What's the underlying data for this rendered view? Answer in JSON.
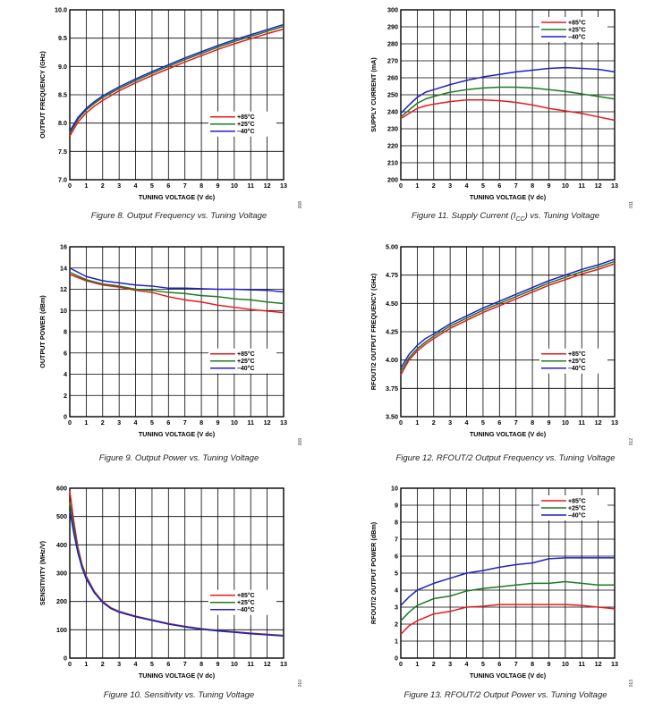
{
  "colors": {
    "hot": "#e8191d",
    "room": "#1c7a22",
    "cold": "#1f1fc8",
    "grid": "#000000"
  },
  "chart_data": [
    {
      "type": "line",
      "id": "fig8",
      "caption": "Figure 8. Output Frequency vs. Tuning Voltage",
      "code": "13382-008",
      "xlabel": "TUNING VOLTAGE (V dc)",
      "ylabel": "OUTPUT FREQUENCY (GHz)",
      "xlim": [
        0,
        13
      ],
      "ylim": [
        7.0,
        10.0
      ],
      "xticks": [
        "0",
        "1",
        "2",
        "3",
        "4",
        "5",
        "6",
        "7",
        "8",
        "9",
        "10",
        "11",
        "12",
        "13"
      ],
      "yticks": [
        "7.0",
        "7.5",
        "8.0",
        "8.5",
        "9.0",
        "9.5",
        "10.0"
      ],
      "legend": "middle-right",
      "x": [
        0,
        0.5,
        1,
        1.5,
        2,
        3,
        4,
        5,
        6,
        7,
        8,
        9,
        10,
        11,
        12,
        13
      ],
      "series": [
        {
          "name": "+85°C",
          "color": "hot",
          "values": [
            7.77,
            8.02,
            8.18,
            8.3,
            8.4,
            8.57,
            8.71,
            8.84,
            8.96,
            9.08,
            9.19,
            9.3,
            9.4,
            9.49,
            9.58,
            9.66
          ]
        },
        {
          "name": "+25°C",
          "color": "room",
          "values": [
            7.82,
            8.07,
            8.23,
            8.35,
            8.45,
            8.61,
            8.75,
            8.88,
            9.0,
            9.12,
            9.23,
            9.34,
            9.44,
            9.53,
            9.62,
            9.71
          ]
        },
        {
          "name": "–40°C",
          "color": "cold",
          "values": [
            7.86,
            8.1,
            8.26,
            8.38,
            8.48,
            8.64,
            8.78,
            8.91,
            9.03,
            9.15,
            9.26,
            9.37,
            9.47,
            9.56,
            9.65,
            9.74
          ]
        }
      ]
    },
    {
      "type": "line",
      "id": "fig11",
      "caption": "Figure 11. Supply Current (I",
      "caption_sub": "CC",
      "caption_end": ") vs. Tuning Voltage",
      "code": "13382-011",
      "xlabel": "TUNING VOLTAGE (V dc)",
      "ylabel": "SUPPLY CURRENT (mA)",
      "xlim": [
        0,
        13
      ],
      "ylim": [
        200,
        300
      ],
      "xticks": [
        "0",
        "1",
        "2",
        "3",
        "4",
        "5",
        "6",
        "7",
        "8",
        "9",
        "10",
        "11",
        "12",
        "13"
      ],
      "yticks": [
        "200",
        "210",
        "220",
        "230",
        "240",
        "250",
        "260",
        "270",
        "280",
        "290",
        "300"
      ],
      "legend": "top-right",
      "x": [
        0,
        0.5,
        1,
        1.5,
        2,
        3,
        4,
        5,
        6,
        7,
        8,
        9,
        10,
        11,
        12,
        13
      ],
      "series": [
        {
          "name": "+85°C",
          "color": "hot",
          "values": [
            236,
            239,
            242,
            243.5,
            244.5,
            246,
            247,
            247,
            246.5,
            245.5,
            244,
            242,
            240.5,
            239,
            237,
            235
          ]
        },
        {
          "name": "+25°C",
          "color": "room",
          "values": [
            237,
            241,
            245,
            247.5,
            249,
            251.5,
            253,
            254,
            254.5,
            254.5,
            254,
            253,
            252,
            250.5,
            249,
            247.5
          ]
        },
        {
          "name": "–40°C",
          "color": "cold",
          "values": [
            239,
            244,
            248.5,
            251.5,
            253,
            256,
            258.5,
            260.5,
            262,
            263.5,
            264.5,
            265.5,
            266,
            265.5,
            265,
            263.5
          ]
        }
      ]
    },
    {
      "type": "line",
      "id": "fig9",
      "caption": "Figure 9. Output Power vs. Tuning Voltage",
      "code": "13382-009",
      "xlabel": "TUNING VOLTAGE (V dc)",
      "ylabel": "OUTPUT POWER (dBm)",
      "xlim": [
        0,
        13
      ],
      "ylim": [
        0,
        16
      ],
      "xticks": [
        "0",
        "1",
        "2",
        "3",
        "4",
        "5",
        "6",
        "7",
        "8",
        "9",
        "10",
        "11",
        "12",
        "13"
      ],
      "yticks": [
        "0",
        "2",
        "4",
        "6",
        "8",
        "10",
        "12",
        "14",
        "16"
      ],
      "legend": "lower-right",
      "x": [
        0,
        1,
        2,
        3,
        4,
        5,
        6,
        7,
        8,
        9,
        10,
        11,
        12,
        13
      ],
      "series": [
        {
          "name": "+85°C",
          "color": "hot",
          "values": [
            13.4,
            12.8,
            12.4,
            12.2,
            11.9,
            11.7,
            11.3,
            11.0,
            10.8,
            10.5,
            10.3,
            10.1,
            9.95,
            9.8
          ]
        },
        {
          "name": "+25°C",
          "color": "room",
          "values": [
            13.6,
            12.9,
            12.5,
            12.3,
            12.0,
            11.9,
            11.7,
            11.6,
            11.4,
            11.3,
            11.1,
            11.0,
            10.8,
            10.65
          ]
        },
        {
          "name": "–40°C",
          "color": "cold",
          "values": [
            14.0,
            13.2,
            12.8,
            12.6,
            12.4,
            12.3,
            12.1,
            12.1,
            12.05,
            12.0,
            12.0,
            11.95,
            11.9,
            11.75
          ]
        }
      ]
    },
    {
      "type": "line",
      "id": "fig12",
      "caption": "Figure 12. RFOUT/2 Output Frequency vs. Tuning Voltage",
      "code": "13382-012",
      "xlabel": "TUNING VOLTAGE (V dc)",
      "ylabel": "RFOUT/2 OUTPUT FREQUENCY (GHz)",
      "xlim": [
        0,
        13
      ],
      "ylim": [
        3.5,
        5.0
      ],
      "xticks": [
        "0",
        "1",
        "2",
        "3",
        "4",
        "5",
        "6",
        "7",
        "8",
        "9",
        "10",
        "11",
        "12",
        "13"
      ],
      "yticks": [
        "3.50",
        "3.75",
        "4.00",
        "4.25",
        "4.50",
        "4.75",
        "5.00"
      ],
      "legend": "lower-right",
      "x": [
        0,
        0.5,
        1,
        1.5,
        2,
        3,
        4,
        5,
        6,
        7,
        8,
        9,
        10,
        11,
        12,
        13
      ],
      "series": [
        {
          "name": "+85°C",
          "color": "hot",
          "values": [
            3.87,
            4.0,
            4.08,
            4.14,
            4.19,
            4.28,
            4.35,
            4.42,
            4.48,
            4.54,
            4.6,
            4.66,
            4.71,
            4.76,
            4.8,
            4.85
          ]
        },
        {
          "name": "+25°C",
          "color": "room",
          "values": [
            3.9,
            4.02,
            4.1,
            4.16,
            4.21,
            4.3,
            4.37,
            4.44,
            4.5,
            4.56,
            4.62,
            4.68,
            4.73,
            4.78,
            4.82,
            4.87
          ]
        },
        {
          "name": "–40°C",
          "color": "cold",
          "values": [
            3.93,
            4.05,
            4.13,
            4.19,
            4.23,
            4.32,
            4.39,
            4.46,
            4.52,
            4.58,
            4.64,
            4.7,
            4.75,
            4.8,
            4.84,
            4.89
          ]
        }
      ]
    },
    {
      "type": "line",
      "id": "fig10",
      "caption": "Figure 10. Sensitivity vs. Tuning Voltage",
      "code": "13382-010",
      "xlabel": "TUNING VOLTAGE (V dc)",
      "ylabel": "SENSITIVITY (MHz/V)",
      "xlim": [
        0,
        13
      ],
      "ylim": [
        0,
        600
      ],
      "xticks": [
        "0",
        "1",
        "2",
        "3",
        "4",
        "5",
        "6",
        "7",
        "8",
        "9",
        "10",
        "11",
        "12",
        "13"
      ],
      "yticks": [
        "0",
        "100",
        "200",
        "300",
        "400",
        "500",
        "600"
      ],
      "legend": "middle-right",
      "x": [
        0,
        0.25,
        0.5,
        0.75,
        1,
        1.5,
        2,
        2.5,
        3,
        4,
        5,
        6,
        7,
        8,
        9,
        10,
        11,
        12,
        13
      ],
      "series": [
        {
          "name": "+85°C",
          "color": "hot",
          "values": [
            590,
            480,
            390,
            330,
            290,
            235,
            200,
            178,
            165,
            148,
            135,
            122,
            112,
            104,
            98,
            93,
            88,
            84,
            80
          ]
        },
        {
          "name": "+25°C",
          "color": "room",
          "values": [
            550,
            460,
            380,
            325,
            285,
            232,
            198,
            176,
            163,
            147,
            134,
            121,
            111,
            103,
            97,
            92,
            87,
            83,
            79
          ]
        },
        {
          "name": "–40°C",
          "color": "cold",
          "values": [
            520,
            440,
            370,
            318,
            280,
            230,
            196,
            175,
            162,
            146,
            133,
            120,
            110,
            102,
            96,
            91,
            86,
            82,
            78
          ]
        }
      ]
    },
    {
      "type": "line",
      "id": "fig13",
      "caption": "Figure 13. RFOUT/2 Output Power vs. Tuning Voltage",
      "code": "13382-013",
      "xlabel": "TUNING VOLTAGE (V dc)",
      "ylabel": "RFOUT/2 OUTPUT POWER (dBm)",
      "xlim": [
        0,
        13
      ],
      "ylim": [
        0,
        10
      ],
      "xticks": [
        "0",
        "1",
        "2",
        "3",
        "4",
        "5",
        "6",
        "7",
        "8",
        "9",
        "10",
        "11",
        "12",
        "13"
      ],
      "yticks": [
        "0",
        "1",
        "2",
        "3",
        "4",
        "5",
        "6",
        "7",
        "8",
        "9",
        "10"
      ],
      "legend": "top-right",
      "x": [
        0,
        0.5,
        1,
        1.5,
        2,
        3,
        4,
        5,
        6,
        7,
        8,
        9,
        10,
        11,
        12,
        13
      ],
      "series": [
        {
          "name": "+85°C",
          "color": "hot",
          "values": [
            1.4,
            1.9,
            2.2,
            2.4,
            2.6,
            2.75,
            3.0,
            3.05,
            3.15,
            3.15,
            3.15,
            3.15,
            3.15,
            3.1,
            3.0,
            2.9
          ]
        },
        {
          "name": "+25°C",
          "color": "room",
          "values": [
            2.2,
            2.7,
            3.1,
            3.3,
            3.5,
            3.65,
            3.95,
            4.1,
            4.2,
            4.3,
            4.4,
            4.4,
            4.5,
            4.4,
            4.3,
            4.3
          ]
        },
        {
          "name": "–40°C",
          "color": "cold",
          "values": [
            3.1,
            3.6,
            4.0,
            4.2,
            4.4,
            4.7,
            5.0,
            5.15,
            5.35,
            5.5,
            5.6,
            5.85,
            5.9,
            5.9,
            5.9,
            5.9
          ]
        }
      ]
    }
  ]
}
